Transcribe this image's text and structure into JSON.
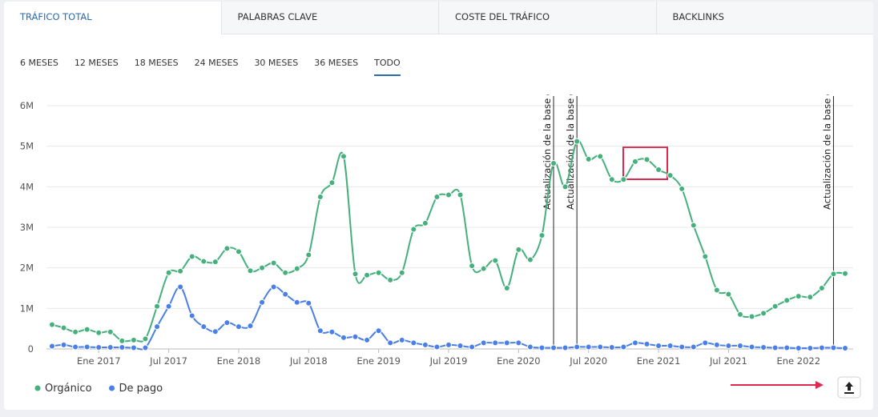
{
  "tabs": [
    "TRÁFICO TOTAL",
    "PALABRAS CLAVE",
    "COSTE DEL TRÁFICO",
    "BACKLINKS"
  ],
  "ranges": [
    "6 MESES",
    "12 MESES",
    "18 MESES",
    "24 MESES",
    "30 MESES",
    "36 MESES",
    "TODO"
  ],
  "chart_data": {
    "type": "line",
    "x": [
      "2016-09",
      "2016-10",
      "2016-11",
      "2016-12",
      "2017-01",
      "2017-02",
      "2017-03",
      "2017-04",
      "2017-05",
      "2017-06",
      "2017-07",
      "2017-08",
      "2017-09",
      "2017-10",
      "2017-11",
      "2017-12",
      "2018-01",
      "2018-02",
      "2018-03",
      "2018-04",
      "2018-05",
      "2018-06",
      "2018-07",
      "2018-08",
      "2018-09",
      "2018-10",
      "2018-11",
      "2018-12",
      "2019-01",
      "2019-02",
      "2019-03",
      "2019-04",
      "2019-05",
      "2019-06",
      "2019-07",
      "2019-08",
      "2019-09",
      "2019-10",
      "2019-11",
      "2019-12",
      "2020-01",
      "2020-02",
      "2020-03",
      "2020-04",
      "2020-05",
      "2020-06",
      "2020-07",
      "2020-08",
      "2020-09",
      "2020-10",
      "2020-11",
      "2020-12",
      "2021-01",
      "2021-02",
      "2021-03",
      "2021-04",
      "2021-05",
      "2021-06",
      "2021-07",
      "2021-08",
      "2021-09",
      "2021-10",
      "2021-11",
      "2021-12",
      "2022-01",
      "2022-02",
      "2022-03",
      "2022-04",
      "2022-05"
    ],
    "series": [
      {
        "name": "Orgánico",
        "color": "#45b07c",
        "values": [
          600000,
          520000,
          420000,
          480000,
          400000,
          420000,
          200000,
          220000,
          250000,
          1050000,
          1880000,
          1920000,
          2280000,
          2160000,
          2150000,
          2480000,
          2400000,
          1930000,
          2000000,
          2120000,
          1880000,
          1980000,
          2320000,
          3750000,
          4100000,
          4750000,
          1850000,
          1820000,
          1880000,
          1700000,
          1880000,
          2950000,
          3100000,
          3750000,
          3800000,
          3800000,
          2050000,
          1980000,
          2180000,
          1500000,
          2450000,
          2200000,
          2800000,
          4580000,
          4000000,
          5120000,
          4680000,
          4750000,
          4180000,
          4180000,
          4620000,
          4670000,
          4420000,
          4280000,
          3950000,
          3050000,
          2280000,
          1450000,
          1350000,
          850000,
          800000,
          880000,
          1050000,
          1200000,
          1300000,
          1280000,
          1500000,
          1850000,
          1860000
        ]
      },
      {
        "name": "De pago",
        "color": "#4a7fe8",
        "values": [
          70000,
          100000,
          50000,
          50000,
          40000,
          40000,
          40000,
          30000,
          30000,
          550000,
          1050000,
          1530000,
          820000,
          550000,
          430000,
          650000,
          550000,
          570000,
          1150000,
          1530000,
          1350000,
          1150000,
          1130000,
          450000,
          420000,
          280000,
          300000,
          220000,
          450000,
          150000,
          220000,
          150000,
          100000,
          50000,
          100000,
          80000,
          50000,
          150000,
          150000,
          150000,
          150000,
          50000,
          30000,
          30000,
          30000,
          50000,
          50000,
          50000,
          40000,
          50000,
          150000,
          120000,
          80000,
          80000,
          50000,
          50000,
          150000,
          100000,
          80000,
          80000,
          50000,
          40000,
          30000,
          30000,
          20000,
          20000,
          30000,
          30000,
          20000
        ]
      }
    ],
    "xlim": [
      "2016-09",
      "2022-05"
    ],
    "xticks": [
      {
        "value": "2017-01",
        "label": "Ene 2017"
      },
      {
        "value": "2017-07",
        "label": "Jul 2017"
      },
      {
        "value": "2018-01",
        "label": "Ene 2018"
      },
      {
        "value": "2018-07",
        "label": "Jul 2018"
      },
      {
        "value": "2019-01",
        "label": "Ene 2019"
      },
      {
        "value": "2019-07",
        "label": "Jul 2019"
      },
      {
        "value": "2020-01",
        "label": "Ene 2020"
      },
      {
        "value": "2020-07",
        "label": "Jul 2020"
      },
      {
        "value": "2021-01",
        "label": "Ene 2021"
      },
      {
        "value": "2021-07",
        "label": "Jul 2021"
      },
      {
        "value": "2022-01",
        "label": "Ene 2022"
      }
    ],
    "ylim": [
      0,
      6000000
    ],
    "yticks": [
      0,
      {
        "value": 1000000,
        "label": "1M"
      },
      {
        "value": 2000000,
        "label": "2M"
      },
      {
        "value": 3000000,
        "label": "3M"
      },
      {
        "value": 4000000,
        "label": "4M"
      },
      {
        "value": 5000000,
        "label": "5M"
      },
      {
        "value": 6000000,
        "label": "6M"
      }
    ],
    "grid": true,
    "legend": "bottom-left",
    "annotations": [
      {
        "x": "2020-04",
        "text": "Actualización de la base de"
      },
      {
        "x": "2020-06",
        "text": "Actualización de la base de"
      },
      {
        "x": "2022-04",
        "text": "Actualización de la base de"
      }
    ]
  }
}
